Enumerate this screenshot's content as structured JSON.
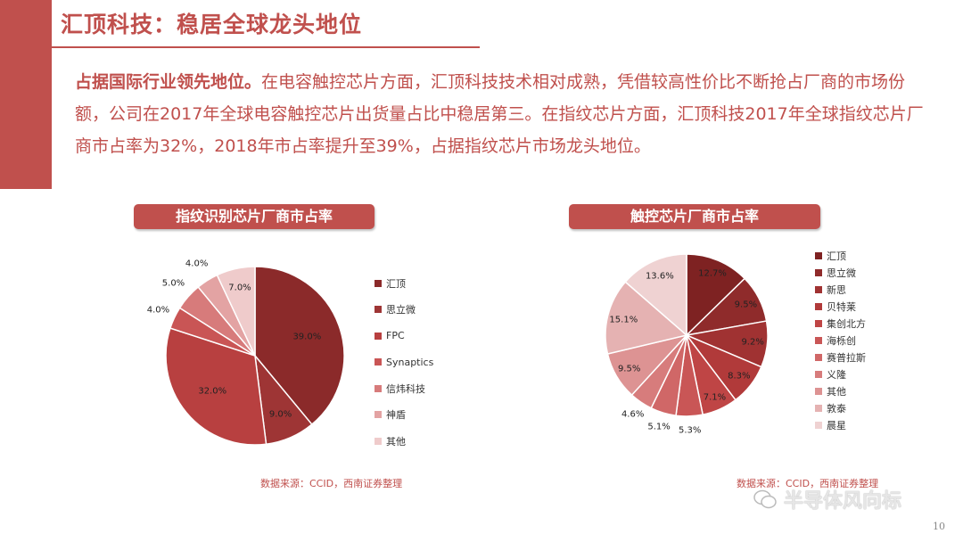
{
  "header": {
    "title": "汇顶科技：稳居全球龙头地位"
  },
  "intro": {
    "lead": "占据国际行业领先地位。",
    "body": "在电容触控芯片方面，汇顶科技技术相对成熟，凭借较高性价比不断抢占厂商的市场份额，公司在2017年全球电容触控芯片出货量占比中稳居第三。在指纹芯片方面，汇顶科技2017年全球指纹芯片厂商市占率为32%，2018年市占率提升至39%，占据指纹芯片市场龙头地位。"
  },
  "chart_data": [
    {
      "type": "pie",
      "title": "指纹识别芯片厂商市占率",
      "categories": [
        "汇顶",
        "思立微",
        "FPC",
        "Synaptics",
        "信炜科技",
        "神盾",
        "其他"
      ],
      "values": [
        39.0,
        9.0,
        32.0,
        4.0,
        5.0,
        4.0,
        7.0
      ],
      "labels": [
        "39.0%",
        "9.0%",
        "32.0%",
        "4.0%",
        "5.0%",
        "4.0%",
        "7.0%"
      ],
      "colors": [
        "#8b2a2a",
        "#9e3535",
        "#b84040",
        "#c95555",
        "#d77b7b",
        "#e3a3a3",
        "#efcbcb"
      ],
      "legend_position": "right",
      "source": "数据来源：CCID，西南证券整理"
    },
    {
      "type": "pie",
      "title": "触控芯片厂商市占率",
      "categories": [
        "汇顶",
        "思立微",
        "新思",
        "贝特莱",
        "集创北方",
        "海栎创",
        "赛普拉斯",
        "义隆",
        "其他",
        "敦泰",
        "晨星"
      ],
      "values": [
        12.7,
        9.5,
        9.2,
        8.3,
        7.1,
        5.3,
        5.1,
        4.6,
        9.5,
        15.1,
        13.6
      ],
      "labels": [
        "12.7%",
        "9.5%",
        "9.2%",
        "8.3%",
        "7.1%",
        "5.3%",
        "5.1%",
        "4.6%",
        "9.5%",
        "15.1%",
        "13.6%"
      ],
      "colors": [
        "#7e2222",
        "#8f2b2b",
        "#a03232",
        "#b13a3a",
        "#bf4545",
        "#c95656",
        "#d06767",
        "#d77c7c",
        "#dd9393",
        "#e5b2b2",
        "#efd2d2"
      ],
      "legend_position": "right",
      "source": "数据来源：CCID，西南证券整理"
    }
  ],
  "watermark": {
    "text": "半导体风向标"
  },
  "page": {
    "number": "10"
  }
}
